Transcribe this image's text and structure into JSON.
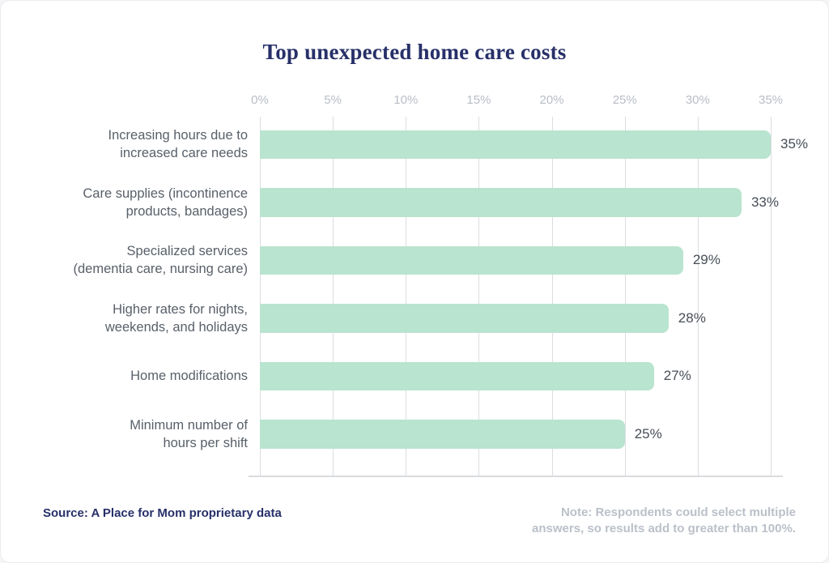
{
  "page": {
    "title": "Top unexpected home care costs"
  },
  "chart_data": {
    "type": "bar",
    "orientation": "horizontal",
    "title": "Top unexpected home care costs",
    "categories": [
      "Increasing hours due to\nincreased care needs",
      "Care supplies (incontinence\nproducts, bandages)",
      "Specialized services\n(dementia care, nursing care)",
      "Higher rates for nights,\nweekends, and holidays",
      "Home modifications",
      "Minimum number of\nhours per shift"
    ],
    "values": [
      35,
      33,
      29,
      28,
      27,
      25
    ],
    "value_labels": [
      "35%",
      "33%",
      "29%",
      "28%",
      "27%",
      "25%"
    ],
    "x_ticks": [
      "0%",
      "5%",
      "10%",
      "15%",
      "20%",
      "25%",
      "30%",
      "35%"
    ],
    "xlim": [
      0,
      35
    ],
    "xlabel": "",
    "ylabel": "",
    "grid": "vertical",
    "axis_position": "top",
    "legend": "none",
    "bar_color": "#b9e4cf",
    "title_color": "#273069",
    "axis_label_color": "#b8bdc6",
    "category_label_color": "#596069",
    "value_label_color": "#474d57",
    "gridline_color": "#dcdde1"
  },
  "footer": {
    "source": "Source: A Place for Mom proprietary data",
    "note": "Note: Respondents could select multiple\nanswers, so results add to greater than 100%."
  }
}
